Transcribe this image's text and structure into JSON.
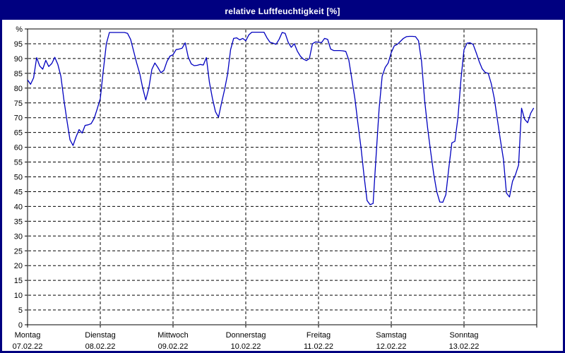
{
  "window": {
    "title": "relative Luftfeuchtigkeit [%]"
  },
  "colors": {
    "titlebar_bg": "#000080",
    "titlebar_text": "#ffffff",
    "window_border": "#000080",
    "plot_background": "#ffffff",
    "frame": "#000000",
    "grid": "#000000",
    "curve": "#0000bf"
  },
  "chart_data": {
    "type": "line",
    "title": "relative Luftfeuchtigkeit [%]",
    "ylabel": "relative Luftfeuchtigkeit",
    "y_unit_symbol": "%",
    "ylim": [
      0,
      100
    ],
    "y_tick_step": 5,
    "y_tick_labels": [
      "0",
      "5",
      "10",
      "15",
      "20",
      "25",
      "30",
      "35",
      "40",
      "45",
      "50",
      "55",
      "60",
      "65",
      "70",
      "75",
      "80",
      "85",
      "90",
      "95",
      "%"
    ],
    "grid": true,
    "grid_style": "dashed",
    "legend": "none",
    "x_span_days": 7,
    "samples_per_day": 24,
    "x_start": "Montag 07.02.22 00:00",
    "x_days": [
      {
        "name": "Montag",
        "date": "07.02.22"
      },
      {
        "name": "Dienstag",
        "date": "08.02.22"
      },
      {
        "name": "Mittwoch",
        "date": "09.02.22"
      },
      {
        "name": "Donnerstag",
        "date": "10.02.22"
      },
      {
        "name": "Freitag",
        "date": "11.02.22"
      },
      {
        "name": "Samstag",
        "date": "12.02.22"
      },
      {
        "name": "Sonntag",
        "date": "13.02.22"
      }
    ],
    "line_color": "#0000bf",
    "series": [
      {
        "name": "relative Luftfeuchtigkeit",
        "unit": "%",
        "values": [
          82.8,
          81.3,
          83.5,
          90.3,
          87.5,
          86.4,
          89.4,
          87.3,
          88.3,
          90.4,
          88.0,
          84.0,
          76.0,
          69.0,
          62.5,
          60.6,
          63.5,
          66.0,
          64.8,
          67.4,
          67.6,
          68.0,
          69.8,
          73.0,
          76.5,
          86.0,
          95.0,
          98.8,
          98.8,
          98.8,
          98.8,
          98.8,
          98.8,
          98.5,
          96.5,
          92.5,
          88.5,
          85.0,
          80.0,
          76.0,
          80.0,
          86.3,
          88.5,
          87.0,
          85.2,
          86.0,
          89.0,
          90.8,
          91.3,
          93.0,
          93.2,
          93.5,
          95.3,
          90.5,
          88.2,
          87.6,
          87.7,
          88.0,
          87.8,
          90.3,
          82.0,
          76.5,
          72.0,
          70.2,
          75.0,
          79.5,
          84.8,
          93.0,
          96.8,
          97.0,
          96.3,
          96.8,
          96.0,
          98.0,
          98.9,
          98.9,
          98.9,
          98.9,
          98.9,
          97.0,
          95.5,
          95.2,
          94.8,
          96.5,
          98.8,
          98.5,
          95.5,
          93.8,
          95.0,
          92.5,
          90.8,
          89.8,
          89.3,
          90.0,
          95.0,
          95.6,
          95.5,
          95.4,
          96.8,
          96.5,
          93.2,
          92.7,
          92.7,
          92.7,
          92.6,
          92.4,
          89.5,
          83.0,
          76.5,
          68.0,
          60.0,
          50.5,
          42.0,
          40.6,
          41.0,
          57.0,
          73.0,
          84.0,
          87.0,
          88.5,
          92.0,
          94.3,
          94.8,
          95.8,
          96.8,
          97.4,
          97.5,
          97.5,
          97.4,
          96.0,
          89.0,
          76.0,
          66.5,
          58.5,
          51.0,
          45.0,
          41.5,
          41.4,
          44.0,
          53.0,
          61.5,
          62.0,
          70.0,
          83.0,
          93.0,
          95.2,
          95.3,
          94.8,
          92.0,
          89.0,
          86.5,
          85.3,
          85.0,
          81.5,
          76.5,
          69.5,
          62.5,
          56.0,
          44.5,
          43.2,
          48.5,
          50.8,
          54.0,
          73.2,
          69.5,
          68.3,
          71.5,
          73.3
        ]
      }
    ]
  }
}
